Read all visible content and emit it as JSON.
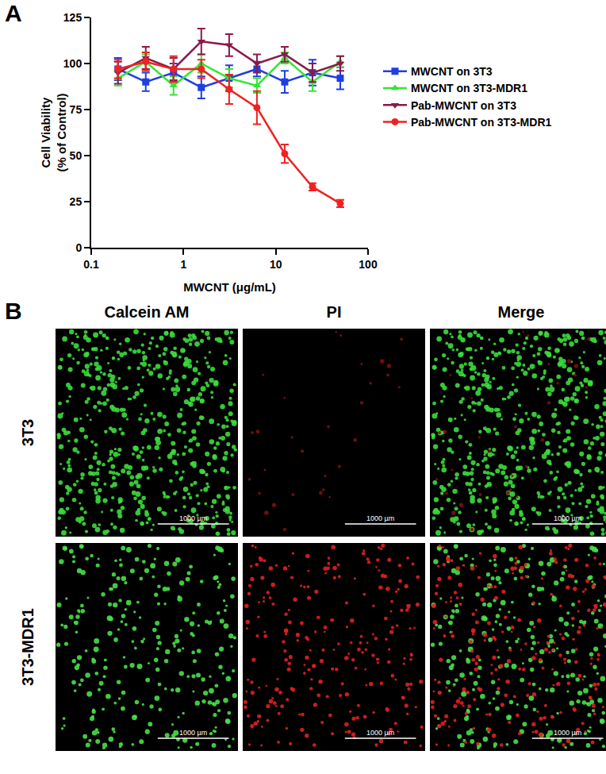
{
  "panel_labels": [
    "A",
    "B"
  ],
  "chart_data": {
    "type": "line",
    "x_label": "MWCNT (μg/mL)",
    "y_label": "Cell Viability\n(% of Control)",
    "log": "x",
    "grid": false,
    "legend": "right",
    "x": [
      0.195,
      0.39,
      0.78,
      1.56,
      3.125,
      6.25,
      12.5,
      25,
      50
    ],
    "xlim": [
      0.1,
      100
    ],
    "xticks": [
      0.1,
      1,
      10,
      100
    ],
    "ylim": [
      0,
      125
    ],
    "yticks": [
      0,
      25,
      50,
      75,
      100,
      125
    ],
    "series": [
      {
        "name": "MWCNT on 3T3",
        "color": "#1f3fe0",
        "marker": "square",
        "line_style": "solid",
        "values": [
          97,
          90,
          95,
          87,
          92,
          97,
          90,
          95,
          92
        ],
        "errors": [
          6,
          5,
          5,
          6,
          7,
          4,
          6,
          7,
          6
        ]
      },
      {
        "name": "MWCNT on 3T3-MDR1",
        "color": "#33e633",
        "marker": "triangle-up",
        "line_style": "solid",
        "values": [
          92,
          101,
          88,
          100,
          92,
          88,
          103,
          90,
          101
        ],
        "errors": [
          4,
          4,
          5,
          5,
          5,
          4,
          3,
          5,
          3
        ]
      },
      {
        "name": "Pab-MWCNT on 3T3",
        "color": "#8b1a4a",
        "marker": "triangle-down",
        "line_style": "solid",
        "values": [
          95,
          103,
          97,
          112,
          110,
          100,
          105,
          95,
          100
        ],
        "errors": [
          6,
          6,
          6,
          7,
          6,
          5,
          4,
          5,
          4
        ]
      },
      {
        "name": "Pab-MWCNT on 3T3-MDR1",
        "color": "#ee2222",
        "marker": "circle",
        "line_style": "solid",
        "values": [
          97,
          101,
          97,
          97,
          86,
          76,
          51,
          33,
          24
        ],
        "errors": [
          5,
          5,
          7,
          5,
          8,
          9,
          5,
          2,
          2
        ]
      }
    ]
  },
  "microscopy": {
    "columns": [
      "Calcein AM",
      "PI",
      "Merge"
    ],
    "rows": [
      "3T3",
      "3T3-MDR1"
    ],
    "scale_bar": "1000 µm"
  }
}
